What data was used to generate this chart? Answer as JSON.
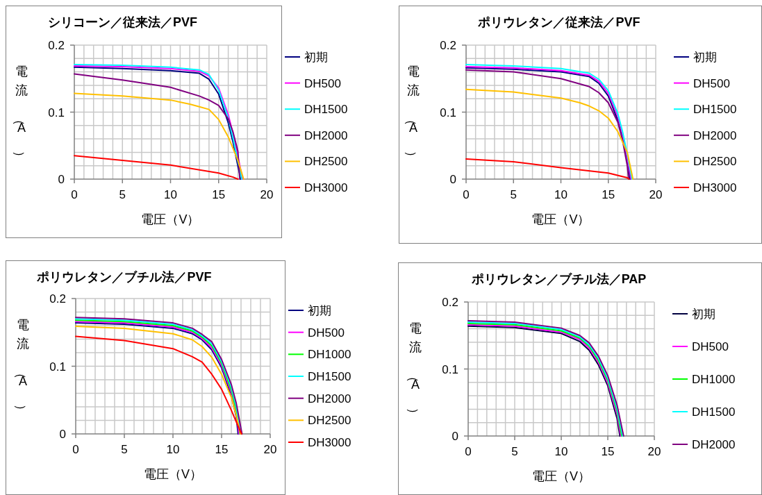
{
  "chart_data": [
    {
      "type": "line",
      "title": "シリコーン／従来法／PVF",
      "xlabel": "電圧（V）",
      "ylabel": "電流（A）",
      "xlim": [
        0,
        20
      ],
      "xticks": [
        0,
        5,
        10,
        15,
        20
      ],
      "ylim": [
        0,
        0.2
      ],
      "yticks": [
        0,
        0.1,
        0.2
      ],
      "grid": true,
      "legend": "right",
      "series": [
        {
          "name": "初期",
          "color": "#000080",
          "x": [
            0,
            5,
            10,
            13,
            14,
            15,
            16,
            16.5,
            17,
            17.3
          ],
          "values": [
            0.167,
            0.165,
            0.162,
            0.158,
            0.149,
            0.127,
            0.084,
            0.055,
            0.02,
            0
          ]
        },
        {
          "name": "DH500",
          "color": "#ff00ff",
          "x": [
            0,
            5,
            10,
            13,
            14,
            15,
            16,
            16.5,
            17,
            17.5
          ],
          "values": [
            0.169,
            0.168,
            0.165,
            0.161,
            0.154,
            0.136,
            0.096,
            0.068,
            0.034,
            0
          ]
        },
        {
          "name": "DH1500",
          "color": "#00ffff",
          "x": [
            0,
            5,
            10,
            13,
            14,
            15,
            16,
            16.5,
            17,
            17.4
          ],
          "values": [
            0.171,
            0.17,
            0.167,
            0.163,
            0.156,
            0.133,
            0.091,
            0.061,
            0.027,
            0
          ]
        },
        {
          "name": "DH2000",
          "color": "#800080",
          "x": [
            0,
            5,
            10,
            13,
            14,
            15,
            16,
            16.5,
            17,
            17.2
          ],
          "values": [
            0.157,
            0.148,
            0.137,
            0.124,
            0.118,
            0.11,
            0.09,
            0.07,
            0.042,
            0
          ]
        },
        {
          "name": "DH2500",
          "color": "#ffc000",
          "x": [
            0,
            5,
            10,
            12,
            13,
            14,
            15,
            16,
            17,
            17.6
          ],
          "values": [
            0.128,
            0.124,
            0.118,
            0.112,
            0.108,
            0.104,
            0.089,
            0.063,
            0.028,
            0
          ]
        },
        {
          "name": "DH3000",
          "color": "#ff0000",
          "x": [
            0,
            5,
            10,
            15,
            16.5,
            17
          ],
          "values": [
            0.035,
            0.028,
            0.021,
            0.009,
            0.003,
            0
          ]
        }
      ]
    },
    {
      "type": "line",
      "title": "ポリウレタン／従来法／PVF",
      "xlabel": "電圧（V）",
      "ylabel": "電流（A）",
      "xlim": [
        0,
        20
      ],
      "xticks": [
        0,
        5,
        10,
        15,
        20
      ],
      "ylim": [
        0,
        0.2
      ],
      "yticks": [
        0,
        0.1,
        0.2
      ],
      "grid": true,
      "legend": "right",
      "series": [
        {
          "name": "初期",
          "color": "#000080",
          "x": [
            0,
            5,
            10,
            13,
            14,
            15,
            16,
            16.5,
            17,
            17.3
          ],
          "values": [
            0.166,
            0.164,
            0.16,
            0.153,
            0.143,
            0.124,
            0.088,
            0.062,
            0.028,
            0
          ]
        },
        {
          "name": "DH500",
          "color": "#ff00ff",
          "x": [
            0,
            5,
            10,
            13,
            14,
            15,
            16,
            16.5,
            17,
            17.4
          ],
          "values": [
            0.168,
            0.166,
            0.162,
            0.155,
            0.146,
            0.128,
            0.094,
            0.067,
            0.032,
            0
          ]
        },
        {
          "name": "DH1500",
          "color": "#00ffff",
          "x": [
            0,
            5,
            10,
            13,
            14,
            15,
            16,
            16.5,
            17,
            17.5
          ],
          "values": [
            0.171,
            0.169,
            0.165,
            0.158,
            0.149,
            0.132,
            0.098,
            0.071,
            0.037,
            0
          ]
        },
        {
          "name": "DH2000",
          "color": "#800080",
          "x": [
            0,
            5,
            10,
            13,
            14,
            15,
            16,
            16.5,
            17,
            17.15
          ],
          "values": [
            0.163,
            0.16,
            0.15,
            0.138,
            0.129,
            0.114,
            0.085,
            0.058,
            0.02,
            0
          ]
        },
        {
          "name": "DH2500",
          "color": "#ffc000",
          "x": [
            0,
            5,
            10,
            12,
            13,
            14,
            15,
            16,
            17,
            17.6
          ],
          "values": [
            0.134,
            0.13,
            0.121,
            0.114,
            0.109,
            0.102,
            0.091,
            0.071,
            0.04,
            0
          ]
        },
        {
          "name": "DH3000",
          "color": "#ff0000",
          "x": [
            0,
            5,
            10,
            15,
            17,
            17.2
          ],
          "values": [
            0.03,
            0.026,
            0.017,
            0.009,
            0.002,
            0
          ]
        }
      ]
    },
    {
      "type": "line",
      "title": "ポリウレタン／ブチル法／PVF",
      "xlabel": "電圧（V）",
      "ylabel": "電流（A）",
      "xlim": [
        0,
        20
      ],
      "xticks": [
        0,
        5,
        10,
        15,
        20
      ],
      "ylim": [
        0,
        0.2
      ],
      "yticks": [
        0,
        0.1,
        0.2
      ],
      "grid": true,
      "legend": "right",
      "series": [
        {
          "name": "初期",
          "color": "#000080",
          "x": [
            0,
            5,
            10,
            12,
            13,
            14,
            15,
            16,
            16.5,
            16.7
          ],
          "values": [
            0.164,
            0.162,
            0.156,
            0.148,
            0.139,
            0.124,
            0.098,
            0.057,
            0.026,
            0
          ]
        },
        {
          "name": "DH500",
          "color": "#ff00ff",
          "x": [
            0,
            5,
            10,
            12,
            13,
            14,
            15,
            16,
            16.5,
            16.8
          ],
          "values": [
            0.166,
            0.164,
            0.158,
            0.15,
            0.141,
            0.127,
            0.101,
            0.061,
            0.031,
            0
          ]
        },
        {
          "name": "DH1000",
          "color": "#00ff00",
          "x": [
            0,
            5,
            10,
            12,
            13,
            14,
            15,
            16,
            16.5,
            16.9
          ],
          "values": [
            0.168,
            0.166,
            0.16,
            0.152,
            0.143,
            0.13,
            0.104,
            0.065,
            0.036,
            0
          ]
        },
        {
          "name": "DH1500",
          "color": "#00ffff",
          "x": [
            0,
            5,
            10,
            12,
            13,
            14,
            15,
            16,
            16.5,
            17
          ],
          "values": [
            0.17,
            0.168,
            0.162,
            0.154,
            0.145,
            0.133,
            0.107,
            0.069,
            0.041,
            0
          ]
        },
        {
          "name": "DH2000",
          "color": "#800080",
          "x": [
            0,
            5,
            10,
            12,
            13,
            14,
            15,
            16,
            16.5,
            17.1
          ],
          "values": [
            0.172,
            0.17,
            0.164,
            0.156,
            0.147,
            0.136,
            0.11,
            0.073,
            0.046,
            0
          ]
        },
        {
          "name": "DH2500",
          "color": "#ffc000",
          "x": [
            0,
            5,
            10,
            12,
            13,
            14,
            15,
            16,
            16.5,
            16.95
          ],
          "values": [
            0.159,
            0.156,
            0.148,
            0.139,
            0.129,
            0.113,
            0.088,
            0.054,
            0.028,
            0
          ]
        },
        {
          "name": "DH3000",
          "color": "#ff0000",
          "x": [
            0,
            5,
            10,
            12,
            13,
            14,
            15,
            16,
            16.5,
            17.05
          ],
          "values": [
            0.144,
            0.138,
            0.126,
            0.114,
            0.106,
            0.088,
            0.066,
            0.035,
            0.018,
            0
          ]
        }
      ]
    },
    {
      "type": "line",
      "title": "ポリウレタン／ブチル法／PAP",
      "xlabel": "電圧（V）",
      "ylabel": "電流（A）",
      "xlim": [
        0,
        20
      ],
      "xticks": [
        0,
        5,
        10,
        15,
        20
      ],
      "ylim": [
        0,
        0.2
      ],
      "yticks": [
        0,
        0.1,
        0.2
      ],
      "grid": true,
      "legend": "right",
      "series": [
        {
          "name": "初期",
          "color": "#000040",
          "x": [
            0,
            5,
            10,
            12,
            13,
            14,
            15,
            16,
            16.3
          ],
          "values": [
            0.164,
            0.162,
            0.153,
            0.141,
            0.128,
            0.106,
            0.075,
            0.026,
            0
          ]
        },
        {
          "name": "DH500",
          "color": "#ff00ff",
          "x": [
            0,
            5,
            10,
            12,
            13,
            14,
            15,
            16,
            16.4
          ],
          "values": [
            0.166,
            0.164,
            0.155,
            0.144,
            0.131,
            0.11,
            0.079,
            0.032,
            0
          ]
        },
        {
          "name": "DH1000",
          "color": "#00ff00",
          "x": [
            0,
            5,
            10,
            12,
            13,
            14,
            15,
            16,
            16.5
          ],
          "values": [
            0.168,
            0.166,
            0.157,
            0.146,
            0.134,
            0.113,
            0.083,
            0.037,
            0
          ]
        },
        {
          "name": "DH1500",
          "color": "#00ffff",
          "x": [
            0,
            5,
            10,
            12,
            13,
            14,
            15,
            16,
            16.6
          ],
          "values": [
            0.17,
            0.168,
            0.159,
            0.148,
            0.136,
            0.116,
            0.086,
            0.041,
            0
          ]
        },
        {
          "name": "DH2000",
          "color": "#800080",
          "x": [
            0,
            5,
            10,
            12,
            13,
            14,
            15,
            16,
            16.7
          ],
          "values": [
            0.172,
            0.17,
            0.161,
            0.15,
            0.139,
            0.119,
            0.09,
            0.046,
            0
          ]
        }
      ]
    }
  ]
}
